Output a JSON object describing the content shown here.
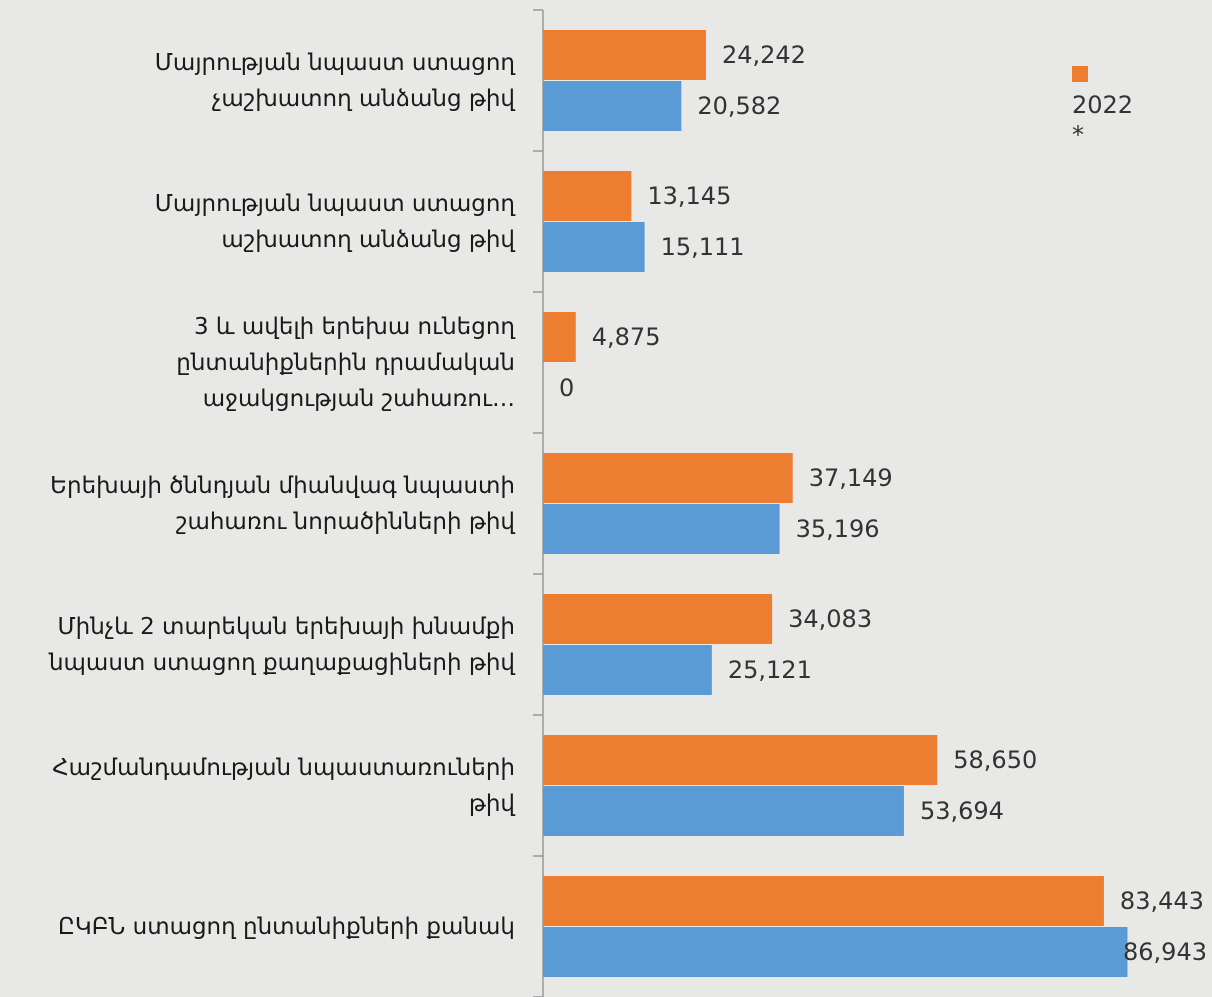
{
  "chart_data": {
    "type": "hbar",
    "categories": [
      "Մայրության նպաստ ստացող\nչաշխատող անձանց թիվ",
      "Մայրության նպաստ ստացող\nաշխատող անձանց թիվ",
      "3 և ավելի երեխա ունեցող\nընտանիքներին դրամական\nաջակցության շահառու…",
      "Երեխայի ծննդյան միանվագ նպաստի\nշահառու նորածինների թիվ",
      "Մինչև 2 տարեկան երեխայի խնամքի\nնպաստ ստացող  քաղաքացիների թիվ",
      "Հաշմանդամության նպաստառուների\nթիվ",
      "ԸԿԲՆ ստացող ընտանիքների քանակ"
    ],
    "series": [
      {
        "name": "2022 *",
        "color": "#ed7d31",
        "values": [
          24242,
          13145,
          4875,
          37149,
          34083,
          58650,
          83443
        ],
        "value_labels": [
          "24,242",
          "13,145",
          "4,875",
          "37,149",
          "34,083",
          "58,650",
          "83,443"
        ]
      },
      {
        "color": "#5b9bd5",
        "values": [
          20582,
          15111,
          0,
          35196,
          25121,
          53694,
          86943
        ],
        "value_labels": [
          "20,582",
          "15,111",
          "0",
          "35,196",
          "25,121",
          "53,694",
          "86,943"
        ]
      }
    ],
    "xlim": [
      0,
      90000
    ],
    "legend": "top-right"
  }
}
